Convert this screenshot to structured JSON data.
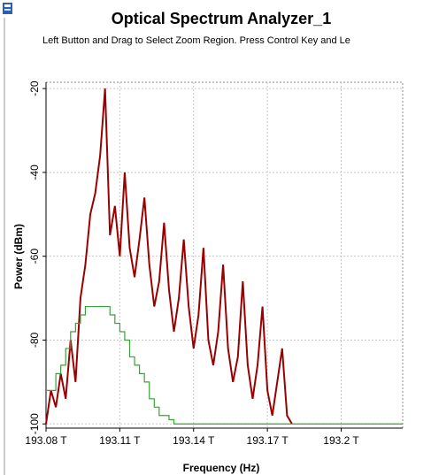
{
  "chart_data": {
    "type": "line",
    "title": "Optical Spectrum Analyzer_1",
    "subtitle": "Left Button and Drag to Select Zoom Region. Press Control Key and Le",
    "xlabel": "Frequency (Hz)",
    "ylabel": "Power (dBm)",
    "x": [
      193.08,
      193.082,
      193.084,
      193.086,
      193.088,
      193.09,
      193.092,
      193.094,
      193.096,
      193.098,
      193.1,
      193.102,
      193.104,
      193.106,
      193.108,
      193.11,
      193.112,
      193.114,
      193.116,
      193.118,
      193.12,
      193.122,
      193.124,
      193.126,
      193.128,
      193.13,
      193.132,
      193.134,
      193.136,
      193.138,
      193.14,
      193.142,
      193.144,
      193.146,
      193.148,
      193.15,
      193.152,
      193.154,
      193.156,
      193.158,
      193.16,
      193.162,
      193.164,
      193.166,
      193.168,
      193.17,
      193.172,
      193.174,
      193.176,
      193.178,
      193.18
    ],
    "series": [
      {
        "color": "#9b0000",
        "values": [
          -100,
          -92,
          -96,
          -88,
          -94,
          -80,
          -90,
          -70,
          -62,
          -50,
          -45,
          -36,
          -20,
          -55,
          -48,
          -60,
          -40,
          -58,
          -65,
          -56,
          -46,
          -62,
          -72,
          -66,
          -52,
          -68,
          -78,
          -70,
          -56,
          -72,
          -82,
          -74,
          -58,
          -80,
          -86,
          -78,
          -62,
          -82,
          -90,
          -84,
          -66,
          -86,
          -94,
          -86,
          -72,
          -92,
          -98,
          -90,
          -82,
          -98,
          -100
        ]
      },
      {
        "color": "#3aa03a",
        "step": true,
        "values": [
          -92,
          -92,
          -88,
          -86,
          -82,
          -78,
          -76,
          -74,
          -72,
          -72,
          -72,
          -72,
          -72,
          -74,
          -76,
          -78,
          -80,
          -84,
          -86,
          -88,
          -90,
          -94,
          -96,
          -98,
          -98,
          -99,
          -100,
          -100,
          -100,
          -100,
          -100,
          -100,
          -100,
          -100,
          -100,
          -100,
          -100,
          -100,
          -100,
          -100,
          -100,
          -100,
          -100,
          -100,
          -100,
          -100,
          -100,
          -100,
          -100,
          -100,
          -100
        ]
      }
    ],
    "xlim": [
      193.08,
      193.225
    ],
    "ylim": [
      -101,
      -18.5
    ],
    "xticks": [
      {
        "value": 193.08,
        "label": "193.08 T"
      },
      {
        "value": 193.11,
        "label": "193.11 T"
      },
      {
        "value": 193.14,
        "label": "193.14 T"
      },
      {
        "value": 193.17,
        "label": "193.17 T"
      },
      {
        "value": 193.2,
        "label": "193.2 T"
      }
    ],
    "yticks": [
      -20,
      -40,
      -60,
      -80,
      -100
    ],
    "grid": true
  }
}
